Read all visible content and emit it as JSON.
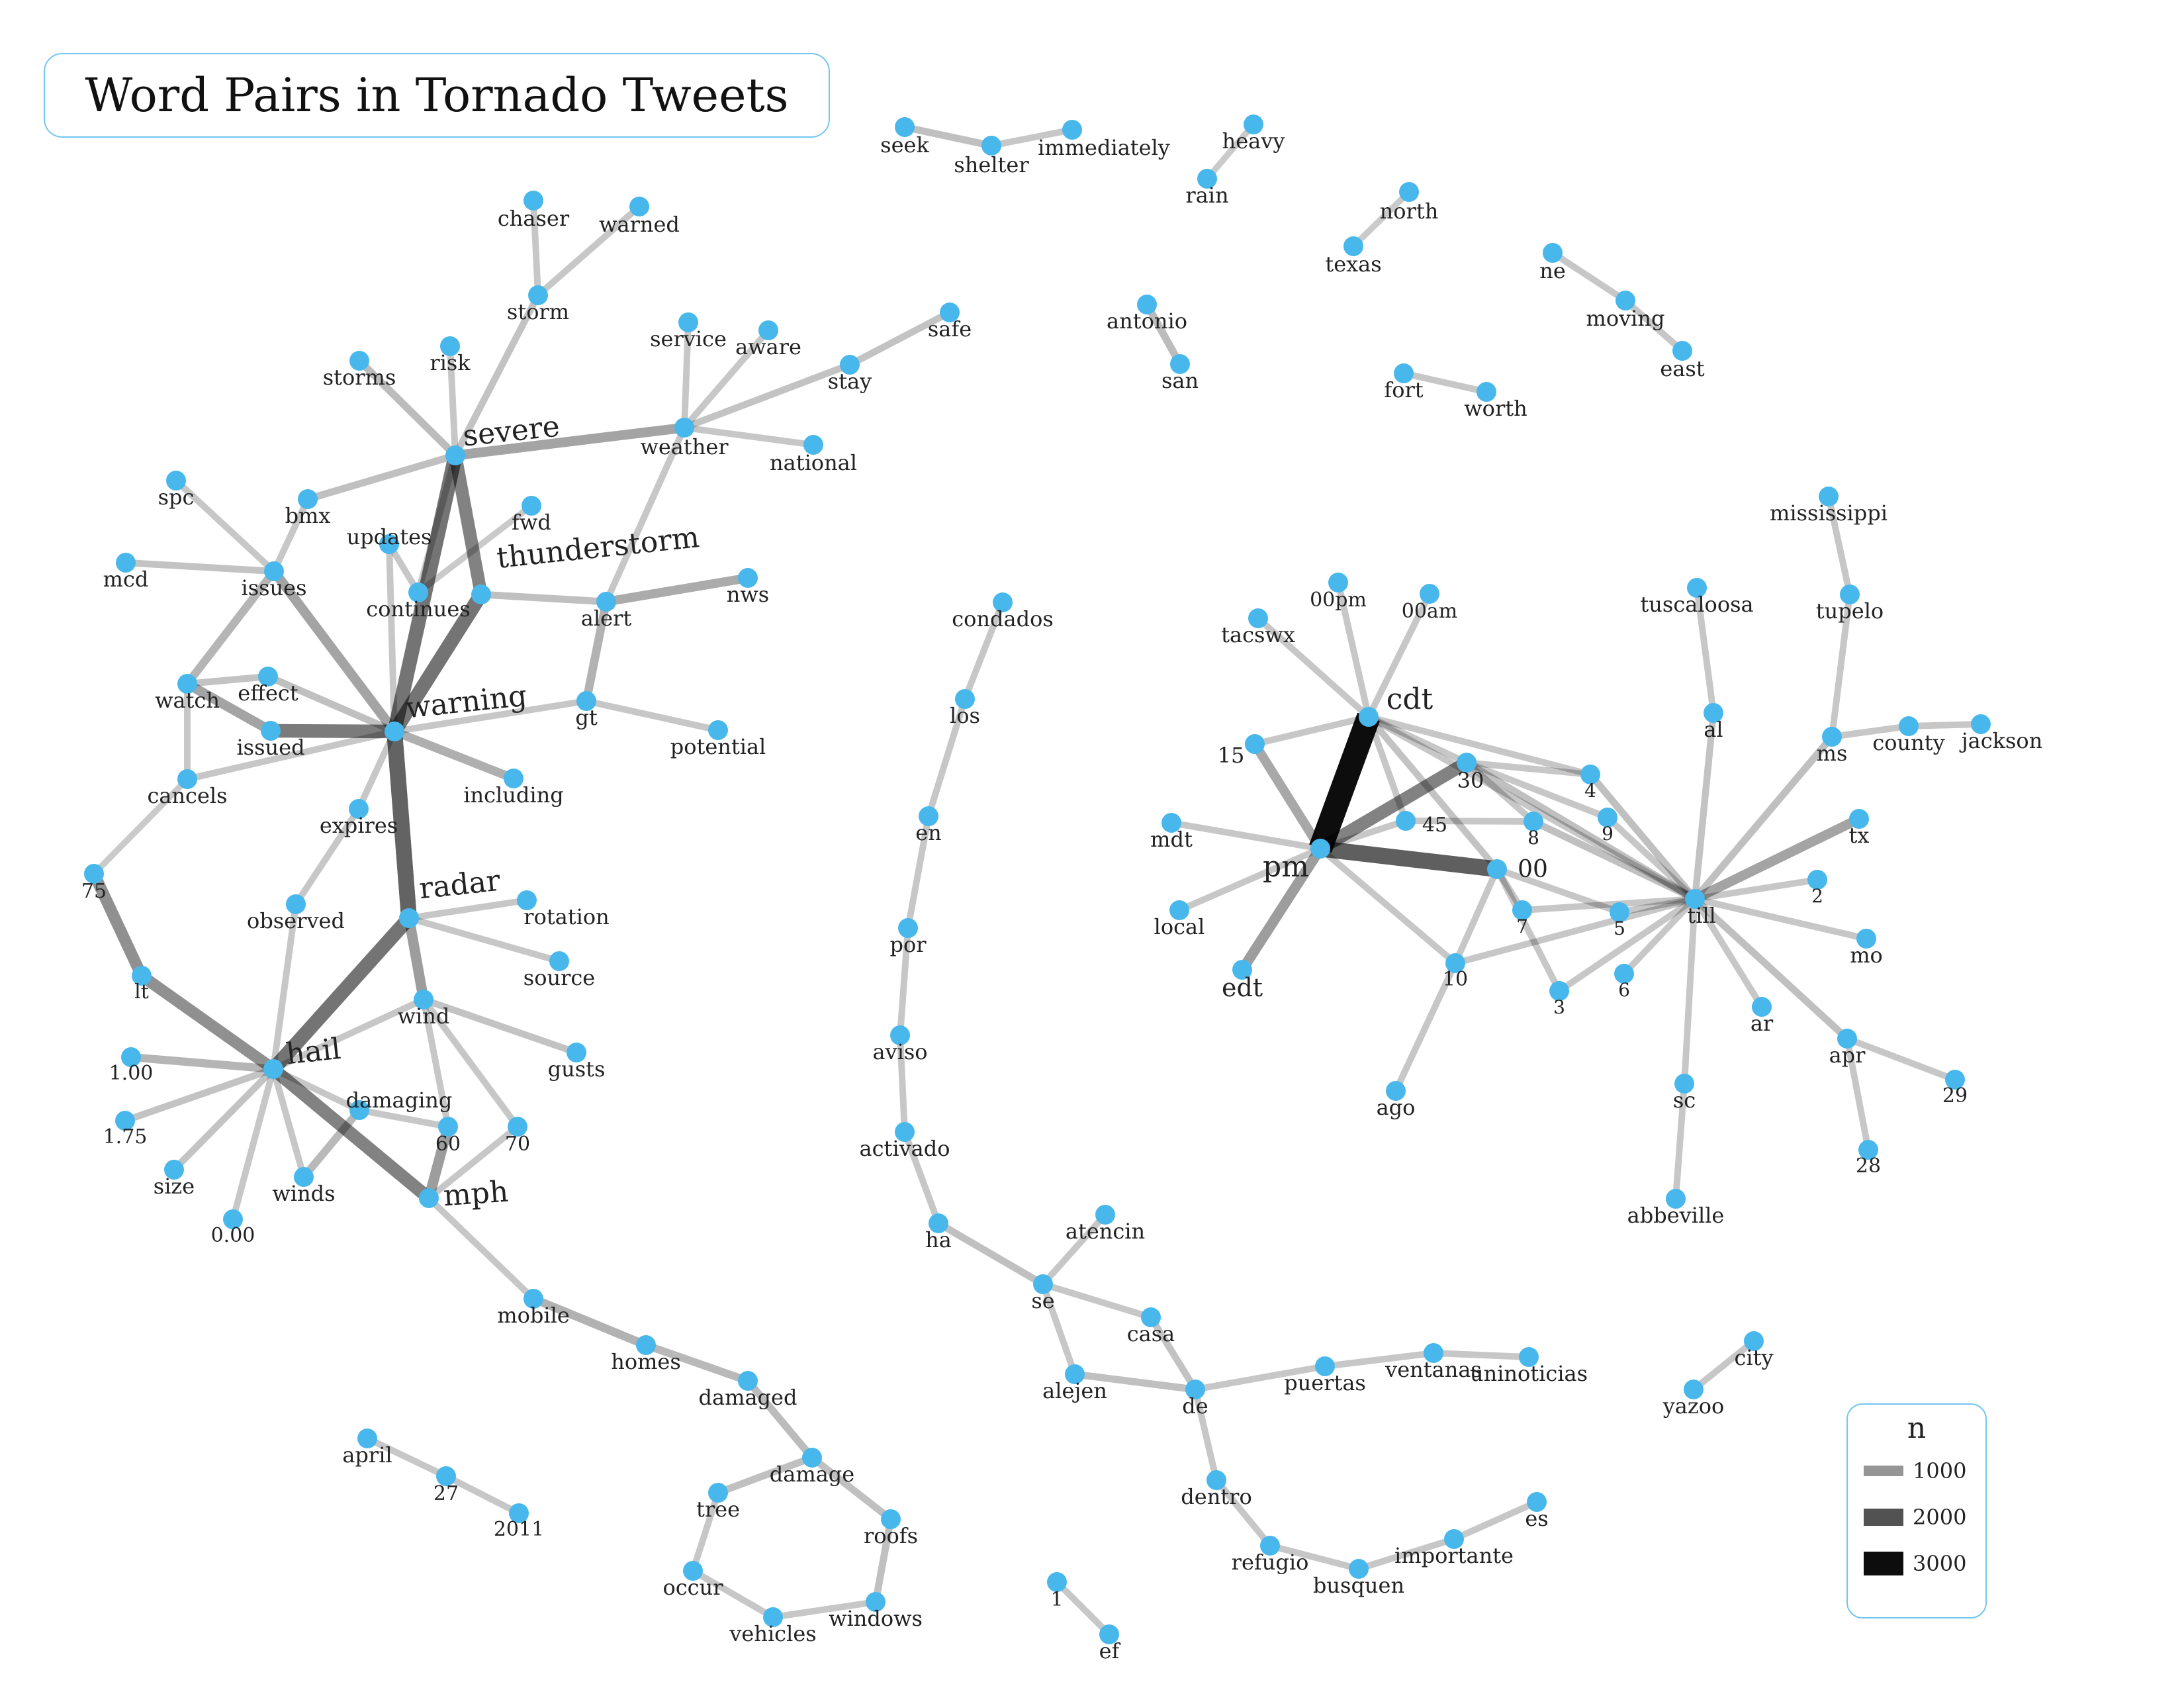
{
  "title": "Word Pairs in Tornado Tweets",
  "colors": {
    "node": "#48b8ec",
    "edge": "#000000",
    "frame": "#74c6ef"
  },
  "legend": {
    "title": "n",
    "items": [
      {
        "label": "1000",
        "value": 1000
      },
      {
        "label": "2000",
        "value": 2000
      },
      {
        "label": "3000",
        "value": 3000
      }
    ]
  },
  "nodes": [
    "seek",
    "shelter",
    "immediately",
    "heavy",
    "rain",
    "north",
    "texas",
    "ne",
    "moving",
    "east",
    "antonio",
    "san",
    "fort",
    "worth",
    "chaser",
    "warned",
    "storm",
    "service",
    "aware",
    "safe",
    "stay",
    "storms",
    "risk",
    "severe",
    "weather",
    "national",
    "spc",
    "bmx",
    "fwd",
    "updates",
    "mcd",
    "issues",
    "continues",
    "thunderstorm",
    "nws",
    "alert",
    "watch",
    "effect",
    "issued",
    "warning",
    "gt",
    "potential",
    "cancels",
    "including",
    "expires",
    "75",
    "observed",
    "radar",
    "rotation",
    "source",
    "lt",
    "wind",
    "gusts",
    "1.00",
    "hail",
    "damaging",
    "1.75",
    "60",
    "70",
    "size",
    "winds",
    "0.00",
    "mph",
    "mobile",
    "homes",
    "damaged",
    "damage",
    "april",
    "27",
    "2011",
    "tree",
    "roofs",
    "occur",
    "vehicles",
    "windows",
    "1",
    "ef",
    "condados",
    "los",
    "en",
    "por",
    "aviso",
    "activado",
    "ha",
    "atencin",
    "se",
    "casa",
    "alejen",
    "de",
    "puertas",
    "ventanas",
    "uninoticias",
    "dentro",
    "refugio",
    "busquen",
    "importante",
    "es",
    "00pm",
    "00am",
    "tacswx",
    "cdt",
    "15",
    "30",
    "mdt",
    "45",
    "4",
    "8",
    "9",
    "pm",
    "00",
    "local",
    "edt",
    "7",
    "5",
    "10",
    "3",
    "6",
    "ago",
    "mississippi",
    "tuscaloosa",
    "tupelo",
    "al",
    "ms",
    "county",
    "jackson",
    "tx",
    "till",
    "2",
    "mo",
    "ar",
    "apr",
    "29",
    "28",
    "sc",
    "abbeville",
    "yazoo",
    "city"
  ],
  "edges": [
    [
      "seek",
      "shelter",
      400
    ],
    [
      "shelter",
      "immediately",
      300
    ],
    [
      "heavy",
      "rain",
      250
    ],
    [
      "north",
      "texas",
      250
    ],
    [
      "ne",
      "moving",
      300
    ],
    [
      "moving",
      "east",
      300
    ],
    [
      "antonio",
      "san",
      450
    ],
    [
      "fort",
      "worth",
      300
    ],
    [
      "chaser",
      "storm",
      300
    ],
    [
      "warned",
      "storm",
      300
    ],
    [
      "storm",
      "severe",
      350
    ],
    [
      "storms",
      "severe",
      450
    ],
    [
      "risk",
      "severe",
      300
    ],
    [
      "severe",
      "weather",
      800
    ],
    [
      "weather",
      "service",
      300
    ],
    [
      "weather",
      "aware",
      300
    ],
    [
      "weather",
      "stay",
      350
    ],
    [
      "stay",
      "safe",
      350
    ],
    [
      "weather",
      "national",
      300
    ],
    [
      "severe",
      "thunderstorm",
      1300
    ],
    [
      "severe",
      "bmx",
      400
    ],
    [
      "severe",
      "continues",
      300
    ],
    [
      "severe",
      "warning",
      1500
    ],
    [
      "spc",
      "issues",
      300
    ],
    [
      "mcd",
      "issues",
      350
    ],
    [
      "bmx",
      "issues",
      300
    ],
    [
      "issues",
      "watch",
      550
    ],
    [
      "issues",
      "warning",
      800
    ],
    [
      "fwd",
      "continues",
      250
    ],
    [
      "updates",
      "warning",
      300
    ],
    [
      "updates",
      "continues",
      300
    ],
    [
      "thunderstorm",
      "warning",
      1500
    ],
    [
      "thunderstorm",
      "alert",
      400
    ],
    [
      "alert",
      "nws",
      700
    ],
    [
      "alert",
      "gt",
      600
    ],
    [
      "alert",
      "weather",
      300
    ],
    [
      "gt",
      "potential",
      300
    ],
    [
      "gt",
      "warning",
      300
    ],
    [
      "watch",
      "effect",
      350
    ],
    [
      "watch",
      "issued",
      800
    ],
    [
      "watch",
      "cancels",
      300
    ],
    [
      "effect",
      "warning",
      400
    ],
    [
      "issued",
      "warning",
      1400
    ],
    [
      "cancels",
      "warning",
      300
    ],
    [
      "warning",
      "including",
      650
    ],
    [
      "warning",
      "expires",
      300
    ],
    [
      "warning",
      "radar",
      1750
    ],
    [
      "expires",
      "observed",
      300
    ],
    [
      "observed",
      "hail",
      300
    ],
    [
      "75",
      "lt",
      1100
    ],
    [
      "75",
      "cancels",
      250
    ],
    [
      "radar",
      "rotation",
      300
    ],
    [
      "radar",
      "source",
      300
    ],
    [
      "radar",
      "wind",
      900
    ],
    [
      "radar",
      "hail",
      1500
    ],
    [
      "wind",
      "gusts",
      350
    ],
    [
      "wind",
      "60",
      300
    ],
    [
      "wind",
      "70",
      300
    ],
    [
      "wind",
      "hail",
      300
    ],
    [
      "lt",
      "hail",
      1100
    ],
    [
      "hail",
      "mph",
      1300
    ],
    [
      "hail",
      "1.00",
      550
    ],
    [
      "hail",
      "1.75",
      350
    ],
    [
      "hail",
      "size",
      350
    ],
    [
      "hail",
      "0.00",
      300
    ],
    [
      "hail",
      "winds",
      300
    ],
    [
      "hail",
      "damaging",
      300
    ],
    [
      "damaging",
      "winds",
      500
    ],
    [
      "damaging",
      "60",
      300
    ],
    [
      "60",
      "mph",
      900
    ],
    [
      "70",
      "mph",
      300
    ],
    [
      "mph",
      "mobile",
      300
    ],
    [
      "mobile",
      "homes",
      600
    ],
    [
      "homes",
      "damaged",
      500
    ],
    [
      "damaged",
      "damage",
      450
    ],
    [
      "damage",
      "tree",
      400
    ],
    [
      "damage",
      "roofs",
      400
    ],
    [
      "tree",
      "occur",
      300
    ],
    [
      "occur",
      "vehicles",
      300
    ],
    [
      "vehicles",
      "windows",
      300
    ],
    [
      "windows",
      "roofs",
      400
    ],
    [
      "april",
      "27",
      300
    ],
    [
      "27",
      "2011",
      300
    ],
    [
      "1",
      "ef",
      300
    ],
    [
      "condados",
      "los",
      300
    ],
    [
      "los",
      "en",
      300
    ],
    [
      "en",
      "por",
      300
    ],
    [
      "por",
      "aviso",
      300
    ],
    [
      "aviso",
      "activado",
      300
    ],
    [
      "activado",
      "ha",
      300
    ],
    [
      "ha",
      "se",
      400
    ],
    [
      "se",
      "atencin",
      300
    ],
    [
      "se",
      "casa",
      300
    ],
    [
      "se",
      "alejen",
      300
    ],
    [
      "casa",
      "de",
      350
    ],
    [
      "alejen",
      "de",
      400
    ],
    [
      "de",
      "puertas",
      300
    ],
    [
      "puertas",
      "ventanas",
      300
    ],
    [
      "ventanas",
      "uninoticias",
      300
    ],
    [
      "de",
      "dentro",
      300
    ],
    [
      "dentro",
      "refugio",
      300
    ],
    [
      "refugio",
      "busquen",
      300
    ],
    [
      "busquen",
      "importante",
      300
    ],
    [
      "importante",
      "es",
      300
    ],
    [
      "00pm",
      "cdt",
      300
    ],
    [
      "00am",
      "cdt",
      300
    ],
    [
      "tacswx",
      "cdt",
      300
    ],
    [
      "cdt",
      "pm",
      3000
    ],
    [
      "cdt",
      "15",
      300
    ],
    [
      "cdt",
      "30",
      300
    ],
    [
      "cdt",
      "00",
      350
    ],
    [
      "cdt",
      "4",
      300
    ],
    [
      "cdt",
      "45",
      300
    ],
    [
      "cdt",
      "till",
      300
    ],
    [
      "15",
      "pm",
      750
    ],
    [
      "30",
      "pm",
      1300
    ],
    [
      "45",
      "pm",
      300
    ],
    [
      "mdt",
      "pm",
      300
    ],
    [
      "pm",
      "00",
      1800
    ],
    [
      "pm",
      "local",
      300
    ],
    [
      "pm",
      "edt",
      900
    ],
    [
      "pm",
      "10",
      300
    ],
    [
      "30",
      "till",
      400
    ],
    [
      "30",
      "4",
      300
    ],
    [
      "30",
      "8",
      300
    ],
    [
      "30",
      "9",
      300
    ],
    [
      "4",
      "till",
      400
    ],
    [
      "8",
      "till",
      400
    ],
    [
      "9",
      "till",
      300
    ],
    [
      "45",
      "8",
      300
    ],
    [
      "00",
      "10",
      300
    ],
    [
      "00",
      "3",
      300
    ],
    [
      "00",
      "7",
      300
    ],
    [
      "00",
      "5",
      300
    ],
    [
      "7",
      "till",
      300
    ],
    [
      "5",
      "till",
      300
    ],
    [
      "10",
      "till",
      300
    ],
    [
      "3",
      "till",
      300
    ],
    [
      "6",
      "till",
      300
    ],
    [
      "10",
      "ago",
      300
    ],
    [
      "mississippi",
      "tupelo",
      300
    ],
    [
      "tupelo",
      "ms",
      300
    ],
    [
      "tuscaloosa",
      "al",
      300
    ],
    [
      "al",
      "till",
      350
    ],
    [
      "ms",
      "till",
      400
    ],
    [
      "ms",
      "county",
      300
    ],
    [
      "county",
      "jackson",
      300
    ],
    [
      "tx",
      "till",
      800
    ],
    [
      "till",
      "2",
      300
    ],
    [
      "till",
      "mo",
      300
    ],
    [
      "till",
      "ar",
      300
    ],
    [
      "till",
      "apr",
      400
    ],
    [
      "apr",
      "29",
      300
    ],
    [
      "apr",
      "28",
      300
    ],
    [
      "till",
      "sc",
      300
    ],
    [
      "sc",
      "abbeville",
      300
    ],
    [
      "yazoo",
      "city",
      300
    ]
  ]
}
